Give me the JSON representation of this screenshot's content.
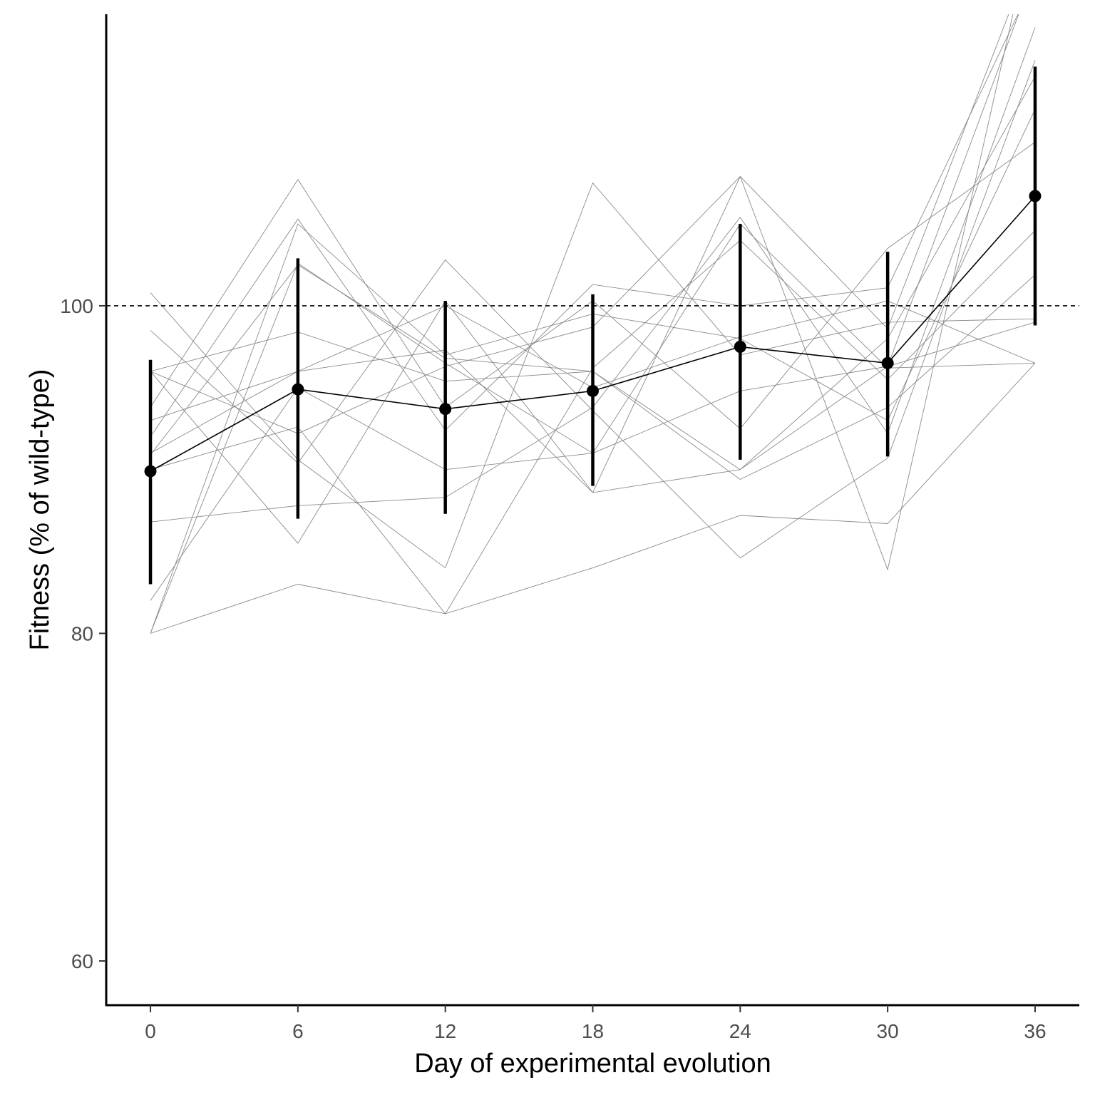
{
  "chart_data": {
    "type": "line",
    "title": "",
    "xlabel": "Day of experimental evolution",
    "ylabel": "Fitness (% of wild-type)",
    "x": [
      0,
      6,
      12,
      18,
      24,
      30,
      36
    ],
    "x_ticks": [
      "0",
      "6",
      "12",
      "18",
      "24",
      "30",
      "36"
    ],
    "y_ticks": [
      "60",
      "80",
      "100"
    ],
    "xlim": [
      -1.8,
      37.8
    ],
    "ylim": [
      57.3,
      117.8
    ],
    "reference_line": {
      "y": 100,
      "style": "dashed"
    },
    "mean_series": {
      "values": [
        89.9,
        94.9,
        93.7,
        94.8,
        97.5,
        96.5,
        106.7
      ],
      "error_low": [
        83.0,
        87.0,
        87.3,
        89.0,
        90.6,
        90.8,
        98.8
      ],
      "error_high": [
        96.7,
        102.9,
        100.3,
        100.7,
        105.0,
        103.3,
        114.6
      ]
    },
    "replicate_series": [
      {
        "values": [
          80.0,
          83.0,
          81.2,
          84.0,
          87.2,
          86.7,
          96.5
        ]
      },
      {
        "values": [
          96.0,
          92.2,
          96.3,
          98.7,
          107.9,
          98.6,
          122.0
        ]
      },
      {
        "values": [
          92.0,
          105.3,
          92.4,
          101.3,
          100.0,
          101.1,
          120.0
        ]
      },
      {
        "values": [
          90.9,
          102.5,
          96.8,
          96.0,
          89.4,
          93.8,
          101.9
        ]
      },
      {
        "values": [
          86.8,
          87.8,
          88.3,
          93.8,
          105.4,
          92.2,
          117.0
        ]
      },
      {
        "values": [
          98.5,
          90.4,
          102.8,
          93.6,
          84.6,
          90.7,
          115.0
        ]
      },
      {
        "values": [
          100.8,
          90.6,
          84.0,
          107.5,
          97.0,
          99.0,
          99.2
        ]
      },
      {
        "values": [
          93.8,
          107.7,
          93.8,
          100.3,
          92.5,
          103.5,
          110.0
        ]
      },
      {
        "values": [
          96.0,
          85.5,
          100.3,
          88.6,
          107.9,
          83.9,
          123.8
        ]
      },
      {
        "values": [
          82.0,
          95.0,
          90.0,
          91.0,
          94.8,
          96.3,
          99.0
        ]
      },
      {
        "values": [
          80.0,
          105.0,
          97.0,
          99.5,
          98.0,
          93.0,
          112.0
        ]
      },
      {
        "values": [
          80.0,
          102.6,
          96.5,
          91.0,
          105.0,
          96.2,
          96.5
        ]
      },
      {
        "values": [
          90.0,
          92.6,
          81.2,
          96.2,
          104.0,
          95.5,
          104.6
        ]
      },
      {
        "values": [
          91.0,
          96.0,
          100.0,
          95.0,
          98.1,
          100.3,
          96.5
        ]
      },
      {
        "values": [
          93.0,
          96.0,
          97.3,
          88.6,
          90.0,
          96.3,
          120.5
        ]
      },
      {
        "values": [
          96.0,
          98.4,
          95.4,
          96.0,
          90.0,
          98.0,
          114.0
        ]
      }
    ]
  }
}
